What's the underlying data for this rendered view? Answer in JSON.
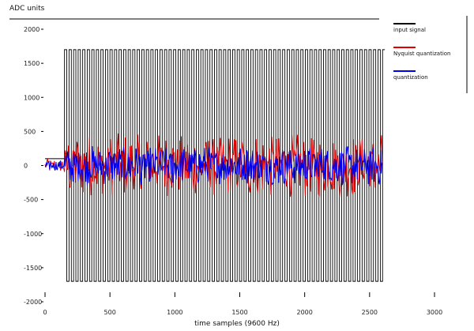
{
  "chart_data": {
    "type": "line",
    "title": "",
    "ylabel": "ADC units",
    "xlabel": "time samples (9600 Hz)",
    "xlim": [
      0,
      3000
    ],
    "ylim": [
      -2000,
      2000
    ],
    "x_ticks": [
      0,
      500,
      1000,
      1500,
      2000,
      2500,
      3000
    ],
    "y_ticks": [
      -2000,
      -1500,
      -1000,
      -500,
      0,
      500,
      1000,
      1500,
      2000
    ],
    "grid": false,
    "legend_position": "top-right",
    "series": [
      {
        "name": "input signal",
        "color": "#000000",
        "description": "square-like wave, amplitude about ±1700 from x≈150 to x≈2600; ~0 before x≈150",
        "x": [
          0,
          100,
          150,
          166,
          182,
          198,
          214,
          230,
          246,
          262,
          278,
          294,
          310,
          326,
          342,
          358,
          374,
          390,
          406,
          422,
          438,
          454,
          470,
          486,
          502,
          518,
          534,
          550
        ],
        "y": [
          100,
          100,
          100,
          1700,
          1700,
          -1700,
          -1700,
          1700,
          1700,
          -1700,
          -1700,
          1700,
          1700,
          -1700,
          -1700,
          1700,
          1700,
          -1700,
          -1700,
          1700,
          1700,
          -1700,
          -1700,
          1700,
          1700,
          -1700,
          -1700,
          1700
        ]
      },
      {
        "name": "Nyquist quantization",
        "color": "#e00000",
        "description": "noisy oscillation, amplitude about ±500 around 0, x from 0 to 2600"
      },
      {
        "name": "quantization",
        "color": "#0000ee",
        "description": "noisy oscillation, amplitude about ±300 around 0, x from 0 to 2600"
      }
    ]
  },
  "legend": {
    "items": [
      {
        "label": "input signal",
        "color": "#000000"
      },
      {
        "label": "Nyquist quantization",
        "color": "#e00000"
      },
      {
        "label": "quantization",
        "color": "#0000ee"
      }
    ]
  }
}
